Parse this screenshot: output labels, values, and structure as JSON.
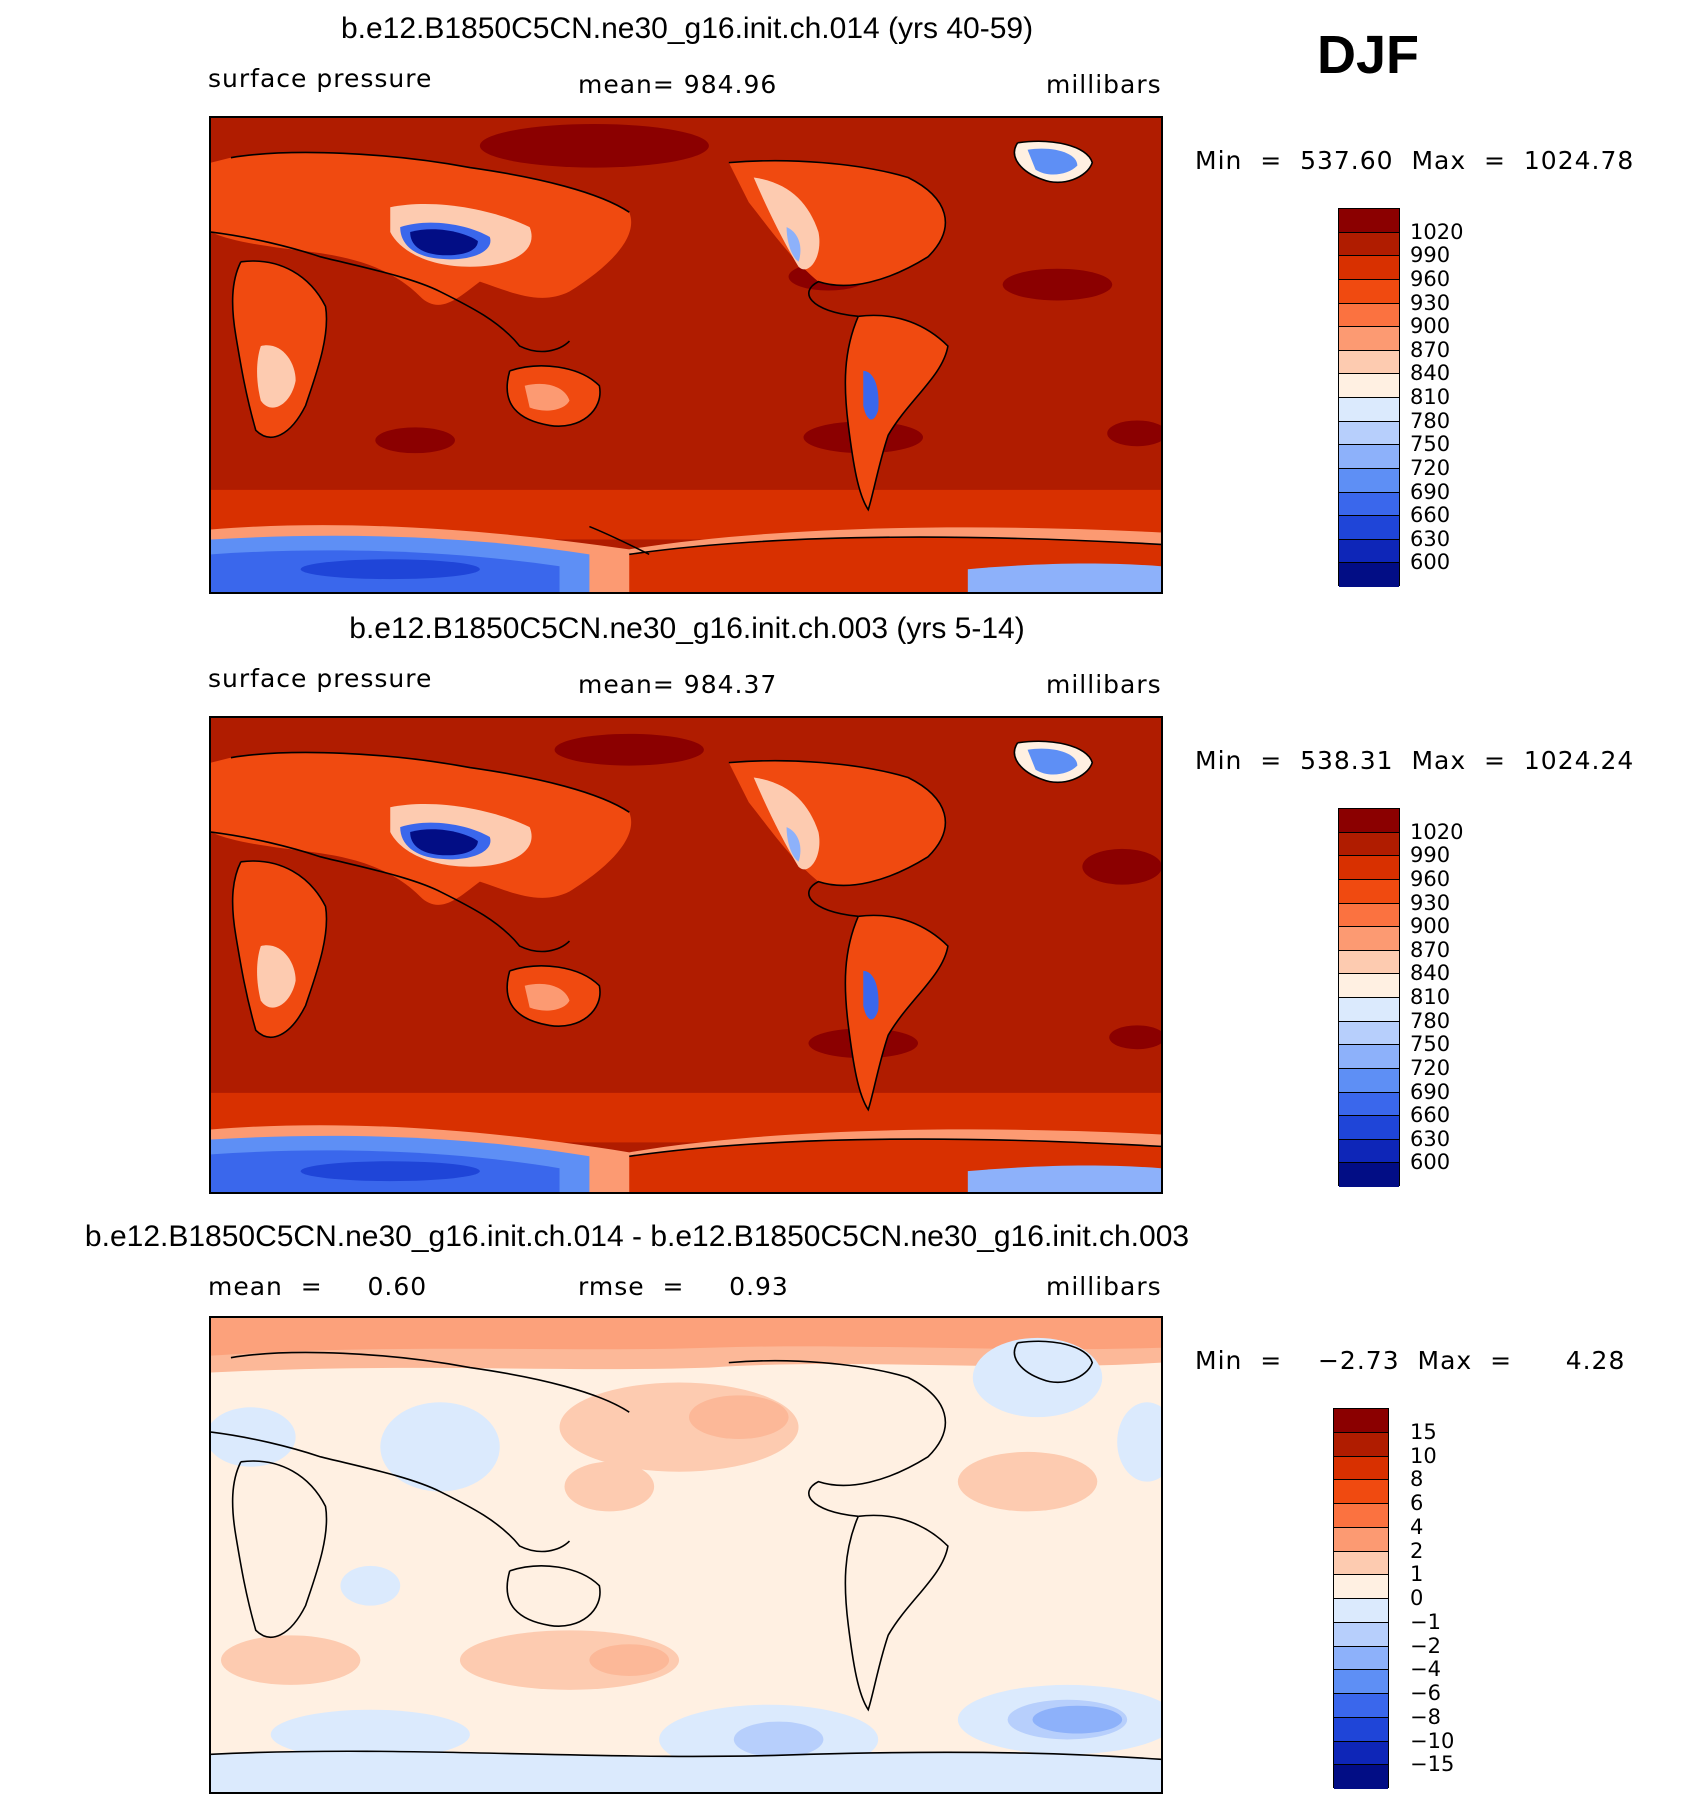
{
  "season": "DJF",
  "panels": [
    {
      "id": "top",
      "title": "b.e12.B1850C5CN.ne30_g16.init.ch.014 (yrs 40-59)",
      "left": "surface pressure",
      "center": "mean=  984.96",
      "right": "millibars",
      "minmax": "Min  =  537.60  Max  =  1024.78",
      "colorbar": {
        "labels": [
          "1020",
          "990",
          "960",
          "930",
          "900",
          "870",
          "840",
          "810",
          "780",
          "750",
          "720",
          "690",
          "660",
          "630",
          "600"
        ],
        "colors": [
          "#8b0000",
          "#b01c00",
          "#d83000",
          "#f04a10",
          "#fb7240",
          "#fc9a72",
          "#fdcbb0",
          "#fff0e2",
          "#dbeafd",
          "#b7cffc",
          "#8db1fa",
          "#5e8ff5",
          "#3a67ec",
          "#1f45d8",
          "#0e26b8",
          "#020d85"
        ]
      }
    },
    {
      "id": "middle",
      "title": "b.e12.B1850C5CN.ne30_g16.init.ch.003 (yrs 5-14)",
      "left": "surface pressure",
      "center": "mean=  984.37",
      "right": "millibars",
      "minmax": "Min  =  538.31  Max  =  1024.24",
      "colorbar": {
        "labels": [
          "1020",
          "990",
          "960",
          "930",
          "900",
          "870",
          "840",
          "810",
          "780",
          "750",
          "720",
          "690",
          "660",
          "630",
          "600"
        ],
        "colors": [
          "#8b0000",
          "#b01c00",
          "#d83000",
          "#f04a10",
          "#fb7240",
          "#fc9a72",
          "#fdcbb0",
          "#fff0e2",
          "#dbeafd",
          "#b7cffc",
          "#8db1fa",
          "#5e8ff5",
          "#3a67ec",
          "#1f45d8",
          "#0e26b8",
          "#020d85"
        ]
      }
    },
    {
      "id": "bottom",
      "title": "b.e12.B1850C5CN.ne30_g16.init.ch.014 - b.e12.B1850C5CN.ne30_g16.init.ch.003",
      "left": "mean  =     0.60",
      "center": "rmse  =     0.93",
      "right": "millibars",
      "minmax": "Min  =    −2.73  Max  =      4.28",
      "colorbar": {
        "labels": [
          "15",
          "10",
          "8",
          "6",
          "4",
          "2",
          "1",
          "0",
          "−1",
          "−2",
          "−4",
          "−6",
          "−8",
          "−10",
          "−15"
        ],
        "colors": [
          "#8b0000",
          "#b01c00",
          "#d83000",
          "#f04a10",
          "#fb7240",
          "#fc9a72",
          "#fdcbb0",
          "#fff0e2",
          "#dbeafd",
          "#b7cffc",
          "#8db1fa",
          "#5e8ff5",
          "#3a67ec",
          "#1f45d8",
          "#0e26b8",
          "#020d85"
        ]
      }
    }
  ]
}
